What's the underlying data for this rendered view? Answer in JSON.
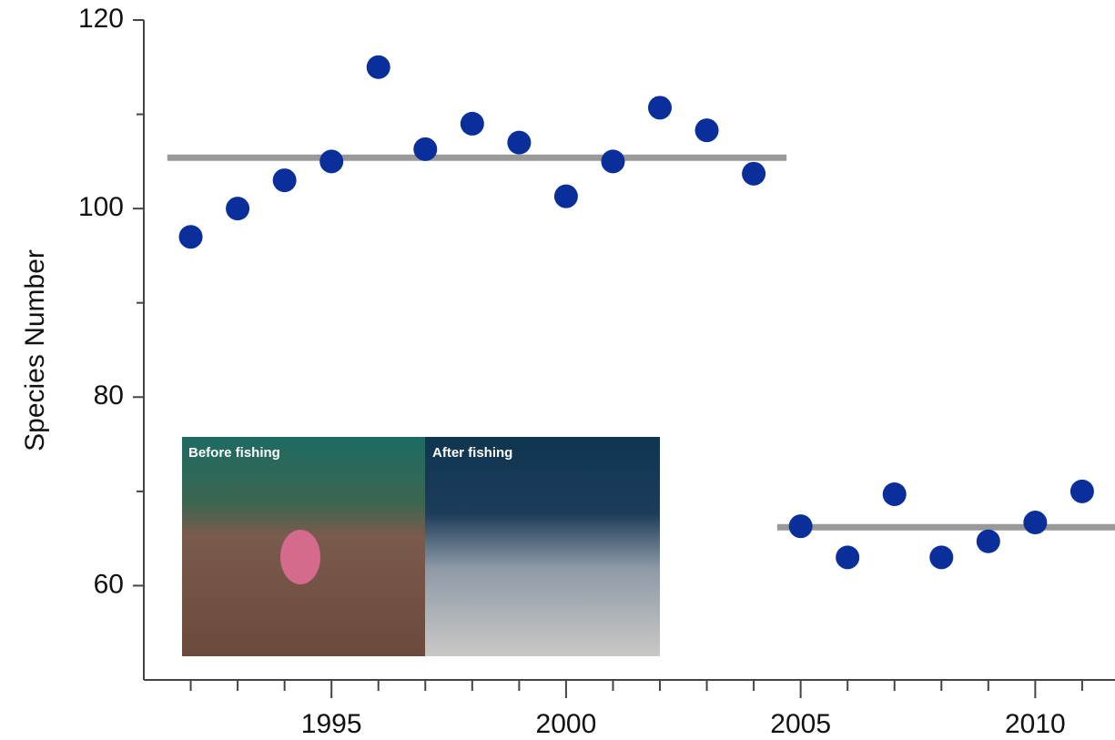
{
  "chart_data": {
    "type": "scatter",
    "ylabel": "Species Number",
    "x": [
      1992,
      1993,
      1994,
      1995,
      1996,
      1997,
      1998,
      1999,
      2000,
      2001,
      2002,
      2003,
      2004,
      2005,
      2006,
      2007,
      2008,
      2009,
      2010,
      2011
    ],
    "series": [
      {
        "color": "#0a2f9a",
        "values": [
          97,
          100,
          103,
          105,
          115,
          106.3,
          109,
          107,
          101.3,
          105,
          110.7,
          108.3,
          103.7,
          66.3,
          63,
          69.7,
          63,
          64.7,
          66.7,
          70
        ]
      }
    ],
    "mean_lines": [
      {
        "x": [
          1991.5,
          2004.7
        ],
        "value": 105.4
      },
      {
        "x": [
          2004.5,
          2011.7
        ],
        "value": 66.2
      }
    ],
    "mean_line_color": "#999999",
    "xlim": [
      1991,
      2011.7
    ],
    "ylim": [
      50,
      120
    ],
    "xticks": [
      1995,
      2000,
      2005,
      2010
    ],
    "xminor_ticks": [
      1992,
      1993,
      1994,
      1996,
      1997,
      1998,
      1999,
      2001,
      2002,
      2003,
      2004,
      2006,
      2007,
      2008,
      2009,
      2011
    ],
    "yticks": [
      60,
      80,
      100,
      120
    ],
    "yminor_ticks": [
      70,
      90,
      110
    ],
    "annotations": [
      "Before fishing",
      "After fishing"
    ]
  }
}
